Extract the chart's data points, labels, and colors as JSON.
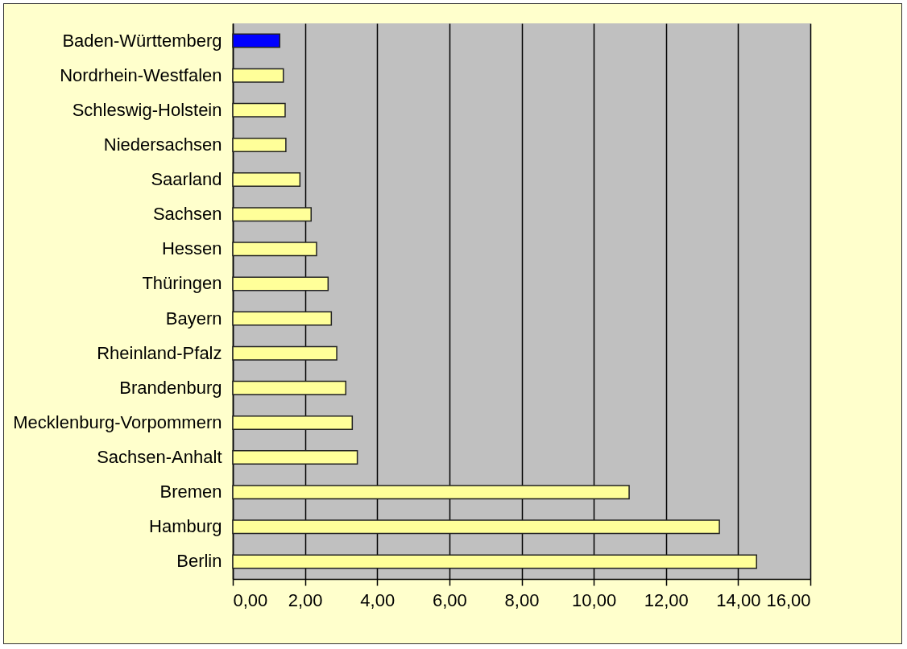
{
  "chart_data": {
    "type": "bar",
    "orientation": "horizontal",
    "categories": [
      "Baden-Württemberg",
      "Nordrhein-Westfalen",
      "Schleswig-Holstein",
      "Niedersachsen",
      "Saarland",
      "Sachsen",
      "Hessen",
      "Thüringen",
      "Bayern",
      "Rheinland-Pfalz",
      "Brandenburg",
      "Mecklenburg-Vorpommern",
      "Sachsen-Anhalt",
      "Bremen",
      "Hamburg",
      "Berlin"
    ],
    "values": [
      1.3,
      1.4,
      1.45,
      1.47,
      1.86,
      2.17,
      2.32,
      2.64,
      2.73,
      2.88,
      3.13,
      3.31,
      3.45,
      10.98,
      13.48,
      14.51
    ],
    "colors": [
      "#0000ff",
      "#ffff99",
      "#ffff99",
      "#ffff99",
      "#ffff99",
      "#ffff99",
      "#ffff99",
      "#ffff99",
      "#ffff99",
      "#ffff99",
      "#ffff99",
      "#ffff99",
      "#ffff99",
      "#ffff99",
      "#ffff99",
      "#ffff99"
    ],
    "xlim": [
      0,
      16
    ],
    "xticks": [
      {
        "value": 0,
        "label": "0,00"
      },
      {
        "value": 2,
        "label": "2,00"
      },
      {
        "value": 4,
        "label": "4,00"
      },
      {
        "value": 6,
        "label": "6,00"
      },
      {
        "value": 8,
        "label": "8,00"
      },
      {
        "value": 10,
        "label": "10,00"
      },
      {
        "value": 12,
        "label": "12,00"
      },
      {
        "value": 14,
        "label": "14,00"
      },
      {
        "value": 16,
        "label": "16,00"
      }
    ],
    "grid": "x",
    "legend": false
  }
}
